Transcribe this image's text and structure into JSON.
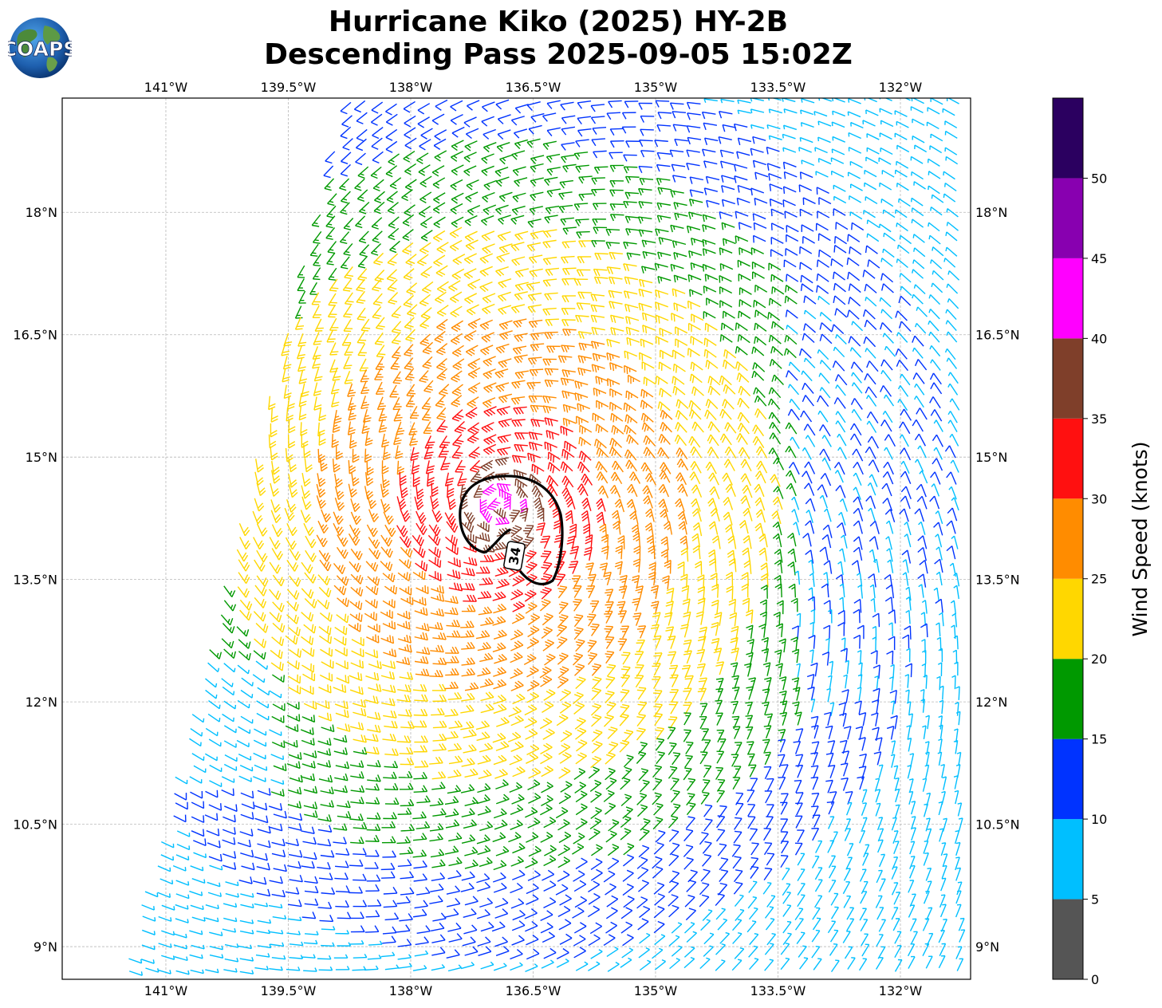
{
  "header": {
    "title_line1": "Hurricane Kiko (2025) HY-2B",
    "title_line2": "Descending Pass 2025-09-05 15:02Z",
    "logo_text": "COAPS"
  },
  "map": {
    "lon_labels": [
      "141°W",
      "139.5°W",
      "138°W",
      "136.5°W",
      "135°W",
      "133.5°W",
      "132°W"
    ],
    "lat_labels": [
      "18°N",
      "16.5°N",
      "15°N",
      "13.5°N",
      "12°N",
      "10.5°N",
      "9°N"
    ],
    "lon_range": [
      -142.27,
      -131.14
    ],
    "lat_range": [
      8.6,
      19.4
    ],
    "gridlines": true,
    "storm_center": {
      "lon": -136.9,
      "lat": 14.4
    },
    "contour_label": "34"
  },
  "colorbar": {
    "label": "Wind Speed (knots)",
    "ticks": [
      "0",
      "5",
      "10",
      "15",
      "20",
      "25",
      "30",
      "35",
      "40",
      "45",
      "50"
    ],
    "bins": [
      {
        "min": 0,
        "max": 5,
        "color": "#555555"
      },
      {
        "min": 5,
        "max": 10,
        "color": "#00bfff"
      },
      {
        "min": 10,
        "max": 15,
        "color": "#0033ff"
      },
      {
        "min": 15,
        "max": 20,
        "color": "#009900"
      },
      {
        "min": 20,
        "max": 25,
        "color": "#ffd700"
      },
      {
        "min": 25,
        "max": 30,
        "color": "#ff8c00"
      },
      {
        "min": 30,
        "max": 35,
        "color": "#ff1010"
      },
      {
        "min": 35,
        "max": 40,
        "color": "#7f3f2a"
      },
      {
        "min": 40,
        "max": 45,
        "color": "#ff00ff"
      },
      {
        "min": 45,
        "max": 50,
        "color": "#8800b0"
      },
      {
        "min": 50,
        "max": 55,
        "color": "#2b0060"
      }
    ]
  }
}
